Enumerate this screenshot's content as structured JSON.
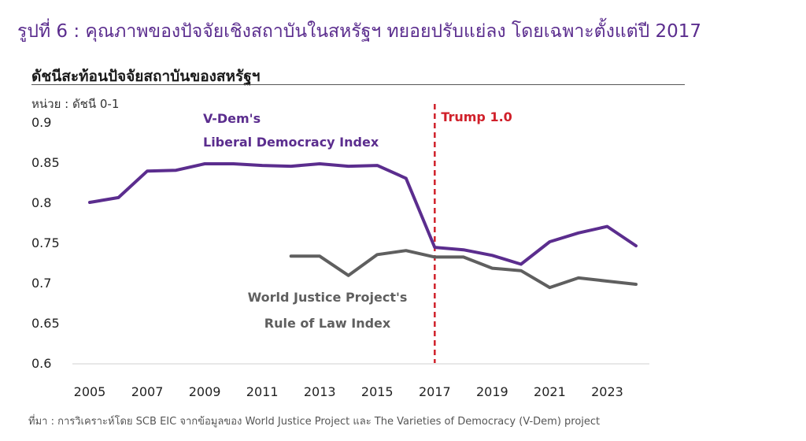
{
  "figure_title": "รูปที่ 6 : คุณภาพของปัจจัยเชิงสถาบันในสหรัฐฯ ทยอยปรับแย่ลง โดยเฉพาะตั้งแต่ปี 2017",
  "source": "ที่มา : การวิเคราะห์โดย SCB EIC จากข้อมูลของ World Justice Project และ The Varieties of Democracy (V-Dem) project",
  "colors": {
    "vdem": "#5b2d8e",
    "wjp": "#5f5f5f",
    "annotation": "#d0202a",
    "title": "#5b2d8e"
  },
  "chart_data": {
    "type": "line",
    "title": "ดัชนีสะท้อนปัจจัยสถาบันของสหรัฐฯ",
    "unit_label": "หน่วย : ดัชนี 0-1",
    "xlim": [
      2005,
      2024
    ],
    "ylim": [
      0.6,
      0.9
    ],
    "x_ticks": [
      2005,
      2007,
      2009,
      2011,
      2013,
      2015,
      2017,
      2019,
      2021,
      2023
    ],
    "y_ticks": [
      0.6,
      0.65,
      0.7,
      0.75,
      0.8,
      0.85,
      0.9
    ],
    "grid": false,
    "series": [
      {
        "name": "V-Dem's Liberal Democracy Index",
        "label_lines": [
          "V-Dem's",
          "Liberal Democracy Index"
        ],
        "color": "#5b2d8e",
        "x": [
          2005,
          2006,
          2007,
          2008,
          2009,
          2010,
          2011,
          2012,
          2013,
          2014,
          2015,
          2016,
          2017,
          2018,
          2019,
          2020,
          2021,
          2022,
          2023,
          2024
        ],
        "values": [
          0.8,
          0.806,
          0.839,
          0.84,
          0.848,
          0.848,
          0.846,
          0.845,
          0.848,
          0.845,
          0.846,
          0.83,
          0.744,
          0.741,
          0.734,
          0.723,
          0.751,
          0.762,
          0.77,
          0.746
        ]
      },
      {
        "name": "World Justice Project's Rule of Law Index",
        "label_lines": [
          "World Justice Project's",
          "Rule of Law Index"
        ],
        "color": "#5f5f5f",
        "x": [
          2012,
          2013,
          2014,
          2015,
          2016,
          2017,
          2018,
          2019,
          2020,
          2021,
          2022,
          2023,
          2024
        ],
        "values": [
          0.733,
          0.733,
          0.709,
          0.735,
          0.74,
          0.732,
          0.732,
          0.718,
          0.715,
          0.694,
          0.706,
          0.702,
          0.698
        ]
      }
    ],
    "annotations": [
      {
        "type": "vline",
        "x": 2017,
        "label": "Trump 1.0",
        "color": "#d0202a",
        "style": "dashed"
      }
    ]
  }
}
